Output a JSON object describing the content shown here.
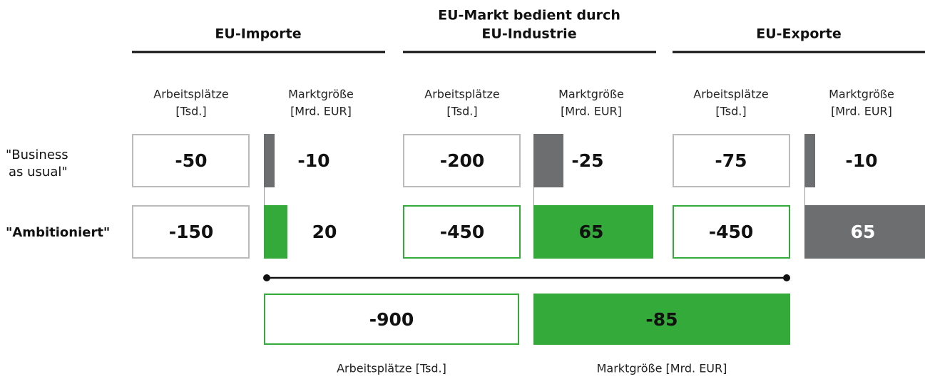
{
  "groups": [
    {
      "title": [
        "EU-Importe"
      ]
    },
    {
      "title": [
        "EU-Markt bedient durch",
        "EU-Industrie"
      ]
    },
    {
      "title": [
        "EU-Exporte"
      ]
    }
  ],
  "column_headers": [
    [
      "Arbeitsplätze",
      "[Tsd.]"
    ],
    [
      "Marktgröße",
      "[Mrd. EUR]"
    ]
  ],
  "rows": [
    {
      "label": [
        "\"Business",
        "as usual\""
      ],
      "cells": [
        "-50",
        "-10",
        "-200",
        "-25",
        "-75",
        "-10"
      ]
    },
    {
      "label": [
        "\"Ambitioniert\""
      ],
      "cells": [
        "-150",
        "20",
        "-450",
        "65",
        "-450",
        "65"
      ]
    }
  ],
  "totals": {
    "values": [
      "-900",
      "-85"
    ],
    "labels": [
      "Arbeitsplätze [Tsd.]",
      "Marktgröße [Mrd. EUR]"
    ]
  }
}
